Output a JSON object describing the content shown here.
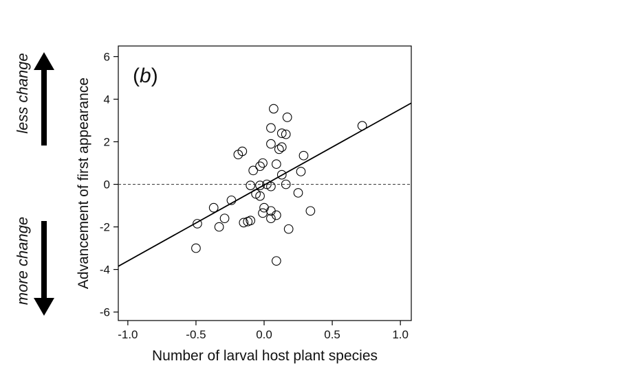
{
  "chart_data": {
    "type": "scatter",
    "panel_label": {
      "open": "(",
      "letter": "b",
      "close": ")"
    },
    "xlabel": "Number of larval host plant species",
    "ylabel": "Advancement of first appearance",
    "xlim": [
      -1.07,
      1.08
    ],
    "ylim": [
      -6.4,
      6.5
    ],
    "xticks": [
      -1.0,
      -0.5,
      0.0,
      0.5,
      1.0
    ],
    "xtick_labels": [
      "-1.0",
      "-0.5",
      "0.0",
      "0.5",
      "1.0"
    ],
    "yticks": [
      -6,
      -4,
      -2,
      0,
      2,
      4,
      6
    ],
    "ytick_labels": [
      "-6",
      "-4",
      "-2",
      "0",
      "2",
      "4",
      "6"
    ],
    "grid": false,
    "reference_line": {
      "y": 0,
      "style": "dashed"
    },
    "regression_line": {
      "x": [
        -1.07,
        1.08
      ],
      "y": [
        -3.85,
        3.82
      ]
    },
    "points": [
      {
        "x": 0.07,
        "y": 3.55
      },
      {
        "x": 0.17,
        "y": 3.15
      },
      {
        "x": 0.05,
        "y": 2.65
      },
      {
        "x": 0.72,
        "y": 2.75
      },
      {
        "x": 0.13,
        "y": 2.4
      },
      {
        "x": 0.16,
        "y": 2.35
      },
      {
        "x": 0.05,
        "y": 1.9
      },
      {
        "x": 0.13,
        "y": 1.75
      },
      {
        "x": 0.11,
        "y": 1.65
      },
      {
        "x": -0.16,
        "y": 1.55
      },
      {
        "x": -0.19,
        "y": 1.4
      },
      {
        "x": 0.29,
        "y": 1.35
      },
      {
        "x": -0.01,
        "y": 1.0
      },
      {
        "x": 0.09,
        "y": 0.95
      },
      {
        "x": -0.03,
        "y": 0.85
      },
      {
        "x": -0.08,
        "y": 0.65
      },
      {
        "x": 0.27,
        "y": 0.6
      },
      {
        "x": 0.13,
        "y": 0.45
      },
      {
        "x": -0.1,
        "y": -0.05
      },
      {
        "x": -0.03,
        "y": -0.05
      },
      {
        "x": 0.02,
        "y": 0.0
      },
      {
        "x": 0.05,
        "y": -0.1
      },
      {
        "x": 0.16,
        "y": 0.0
      },
      {
        "x": -0.06,
        "y": -0.45
      },
      {
        "x": -0.03,
        "y": -0.55
      },
      {
        "x": 0.25,
        "y": -0.4
      },
      {
        "x": -0.24,
        "y": -0.75
      },
      {
        "x": -0.37,
        "y": -1.1
      },
      {
        "x": 0.0,
        "y": -1.1
      },
      {
        "x": 0.05,
        "y": -1.25
      },
      {
        "x": -0.01,
        "y": -1.35
      },
      {
        "x": 0.34,
        "y": -1.25
      },
      {
        "x": 0.09,
        "y": -1.45
      },
      {
        "x": 0.05,
        "y": -1.6
      },
      {
        "x": -0.29,
        "y": -1.6
      },
      {
        "x": -0.1,
        "y": -1.7
      },
      {
        "x": -0.12,
        "y": -1.75
      },
      {
        "x": -0.15,
        "y": -1.8
      },
      {
        "x": -0.49,
        "y": -1.85
      },
      {
        "x": -0.33,
        "y": -2.0
      },
      {
        "x": 0.18,
        "y": -2.1
      },
      {
        "x": -0.5,
        "y": -3.0
      },
      {
        "x": 0.09,
        "y": -3.6
      }
    ]
  },
  "annotations": {
    "up_label": "less change",
    "down_label": "more change"
  }
}
